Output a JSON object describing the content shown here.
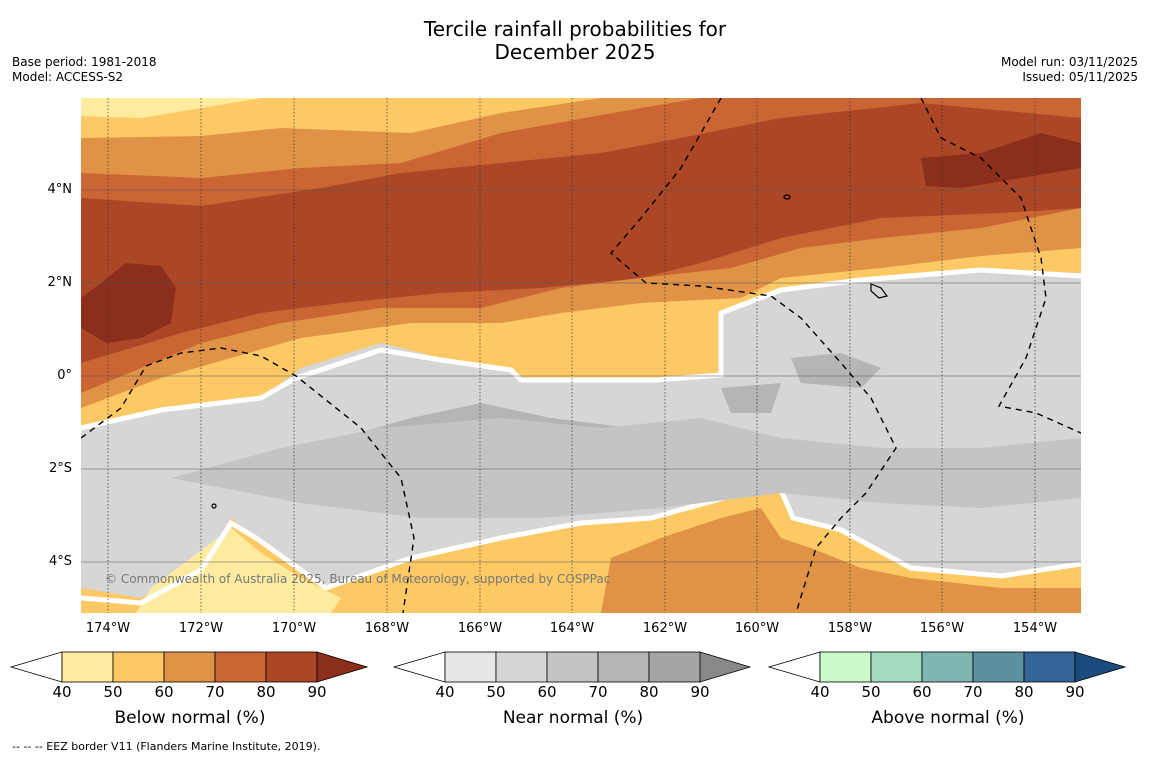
{
  "title": {
    "line1": "Tercile rainfall probabilities for",
    "line2": "December 2025"
  },
  "meta": {
    "base_period": "Base period: 1981-2018",
    "model": "Model: ACCESS-S2",
    "model_run": "Model run: 03/11/2025",
    "issued": "Issued: 05/11/2025"
  },
  "map": {
    "lat_labels": [
      "4°N",
      "2°N",
      "0°",
      "2°S",
      "4°S"
    ],
    "lon_labels": [
      "174°W",
      "172°W",
      "170°W",
      "168°W",
      "166°W",
      "164°W",
      "162°W",
      "160°W",
      "158°W",
      "156°W",
      "154°W"
    ],
    "copyright": "© Commonwealth of Australia 2025, Bureau of Meteorology, supported by COSPPac"
  },
  "colorbars": [
    {
      "label": "Below normal (%)",
      "ticks": [
        "40",
        "50",
        "60",
        "70",
        "80",
        "90"
      ],
      "colors": [
        "#ffffff",
        "#fdeca0",
        "#fdc964",
        "#e09346",
        "#cb6534",
        "#ab4626",
        "#8c2e1c"
      ]
    },
    {
      "label": "Near normal (%)",
      "ticks": [
        "40",
        "50",
        "60",
        "70",
        "80",
        "90"
      ],
      "colors": [
        "#ffffff",
        "#e6e6e6",
        "#d6d6d6",
        "#c4c4c4",
        "#b5b5b5",
        "#a5a5a5",
        "#888888"
      ]
    },
    {
      "label": "Above normal (%)",
      "ticks": [
        "40",
        "50",
        "60",
        "70",
        "80",
        "90"
      ],
      "colors": [
        "#ffffff",
        "#c9fbcd",
        "#a5dbc0",
        "#7fb7b0",
        "#5c92a0",
        "#336598",
        "#1a4c7e"
      ]
    }
  ],
  "footnote": "--  --  -- EEZ border V11 (Flanders Marine Institute, 2019)."
}
